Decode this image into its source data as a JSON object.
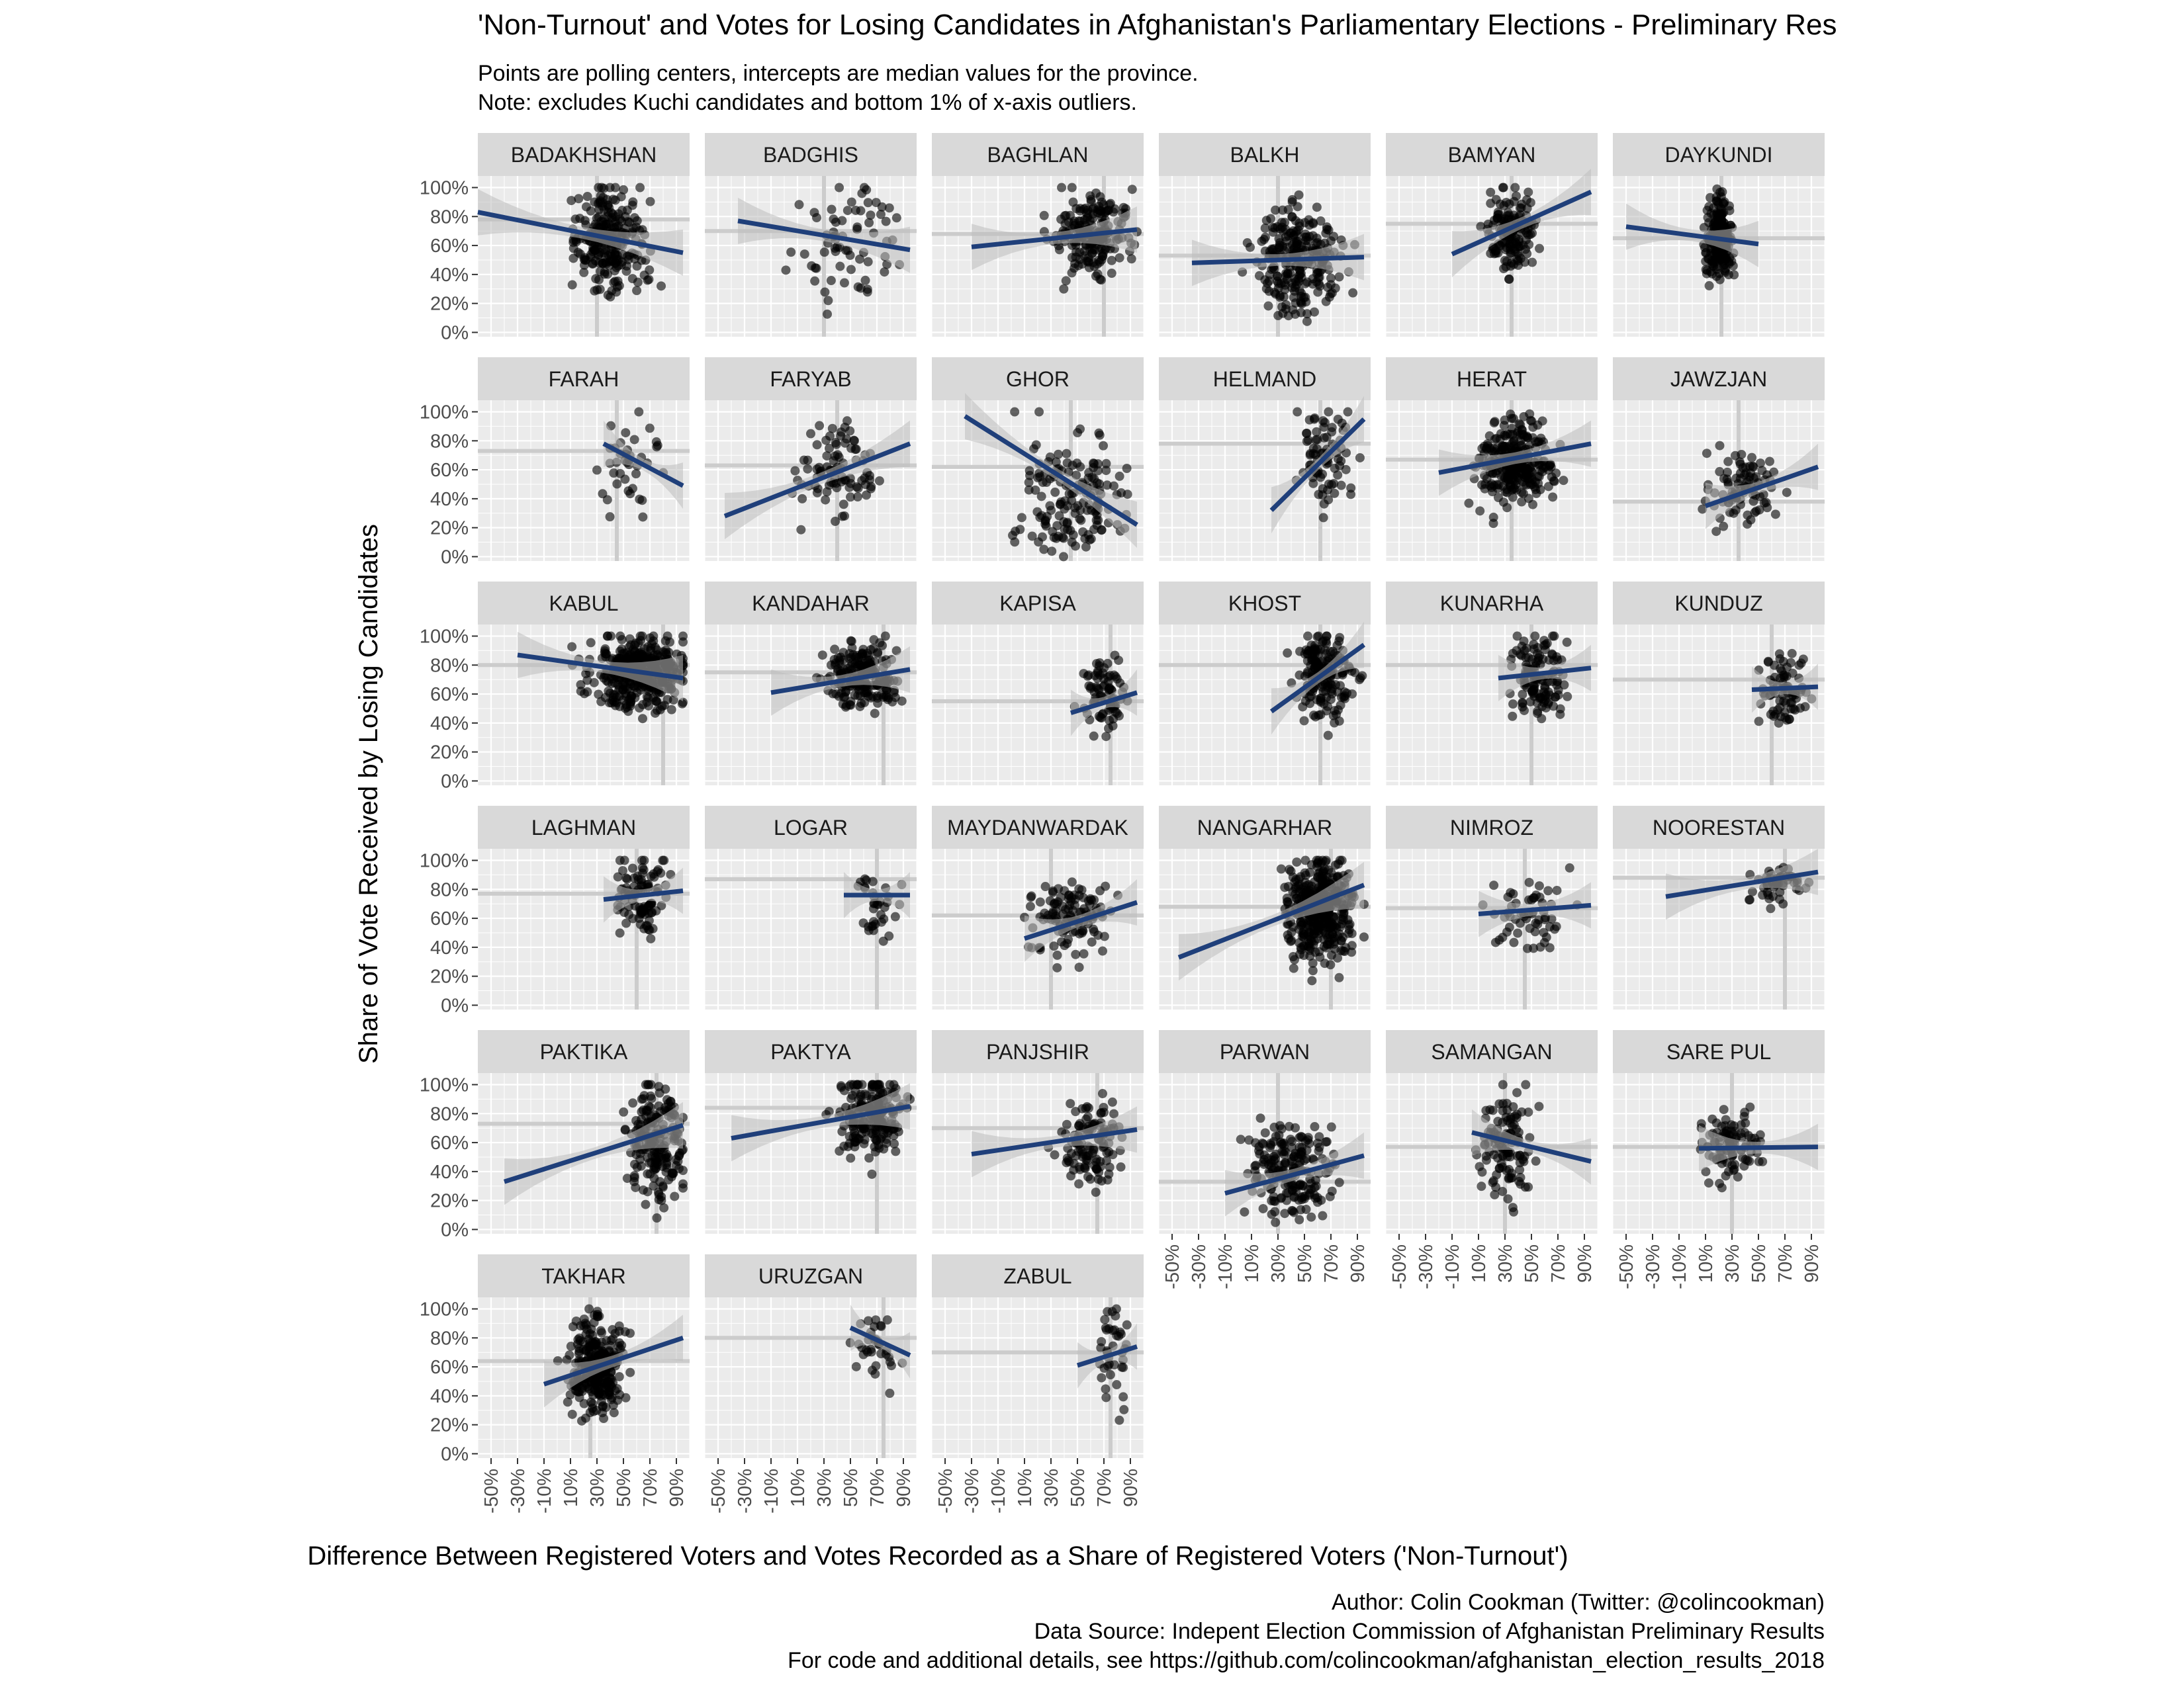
{
  "title": "'Non-Turnout' and Votes for Losing Candidates in Afghanistan's Parliamentary Elections - Preliminary Res",
  "subtitle_lines": [
    "Points are polling centers, intercepts are median values for the province.",
    "Note: excludes Kuchi candidates and bottom 1% of x-axis outliers."
  ],
  "caption_lines": [
    "Author: Colin Cookman (Twitter: @colincookman)",
    "Data Source: Indepent Election Commission of Afghanistan Preliminary Results",
    "For code and additional details, see https://github.com/colincookman/afghanistan_election_results_2018"
  ],
  "colors": {
    "panel_bg": "#ebebeb",
    "strip_bg": "#d9d9d9",
    "grid": "#ffffff",
    "point": "#000000",
    "line": "#1f3f7a",
    "band": "#bdbdbd",
    "median": "#cccccc"
  },
  "chart_data": {
    "type": "scatter",
    "facet": "province",
    "xlabel": "Difference Between Registered Voters and Votes Recorded as a Share of Registered Voters ('Non-Turnout')",
    "ylabel": "Share of Vote Received by Losing Candidates",
    "x_ticks": [
      "-50%",
      "-30%",
      "-10%",
      "10%",
      "30%",
      "50%",
      "70%",
      "90%"
    ],
    "y_ticks": [
      "0%",
      "20%",
      "40%",
      "60%",
      "80%",
      "100%"
    ],
    "xlim": [
      -0.6,
      1.0
    ],
    "ylim": [
      -0.03,
      1.08
    ],
    "grid": true,
    "units": "share",
    "panels": [
      {
        "name": "BADAKHSHAN",
        "median_x": 0.3,
        "median_y": 0.78,
        "fit": [
          [
            -0.6,
            0.83
          ],
          [
            0.95,
            0.55
          ]
        ],
        "cx": 0.4,
        "cy": 0.62,
        "sx": 0.2,
        "sy": 0.25,
        "n": 250,
        "xr": [
          -0.6,
          0.95
        ]
      },
      {
        "name": "BADGHIS",
        "median_x": 0.3,
        "median_y": 0.7,
        "fit": [
          [
            -0.35,
            0.77
          ],
          [
            0.95,
            0.57
          ]
        ],
        "cx": 0.5,
        "cy": 0.6,
        "sx": 0.25,
        "sy": 0.28,
        "n": 70,
        "xr": [
          -0.4,
          0.95
        ]
      },
      {
        "name": "BAGHLAN",
        "median_x": 0.7,
        "median_y": 0.68,
        "fit": [
          [
            -0.3,
            0.59
          ],
          [
            0.95,
            0.71
          ]
        ],
        "cx": 0.6,
        "cy": 0.68,
        "sx": 0.2,
        "sy": 0.2,
        "n": 200,
        "xr": [
          -0.5,
          0.95
        ]
      },
      {
        "name": "BALKH",
        "median_x": 0.3,
        "median_y": 0.53,
        "fit": [
          [
            -0.35,
            0.48
          ],
          [
            0.95,
            0.52
          ]
        ],
        "cx": 0.45,
        "cy": 0.5,
        "sx": 0.22,
        "sy": 0.25,
        "n": 250,
        "xr": [
          -0.5,
          0.95
        ]
      },
      {
        "name": "BAMYAN",
        "median_x": 0.35,
        "median_y": 0.75,
        "fit": [
          [
            -0.1,
            0.54
          ],
          [
            0.95,
            0.97
          ]
        ],
        "cx": 0.35,
        "cy": 0.7,
        "sx": 0.12,
        "sy": 0.2,
        "n": 150,
        "xr": [
          -0.1,
          0.95
        ]
      },
      {
        "name": "DAYKUNDI",
        "median_x": 0.22,
        "median_y": 0.65,
        "fit": [
          [
            -0.5,
            0.73
          ],
          [
            0.5,
            0.61
          ]
        ],
        "cx": 0.2,
        "cy": 0.65,
        "sx": 0.07,
        "sy": 0.2,
        "n": 200,
        "xr": [
          -0.5,
          0.5
        ]
      },
      {
        "name": "FARAH",
        "median_x": 0.45,
        "median_y": 0.73,
        "fit": [
          [
            0.35,
            0.78
          ],
          [
            0.95,
            0.49
          ]
        ],
        "cx": 0.55,
        "cy": 0.65,
        "sx": 0.15,
        "sy": 0.25,
        "n": 40,
        "xr": [
          0.3,
          0.95
        ]
      },
      {
        "name": "FARYAB",
        "median_x": 0.4,
        "median_y": 0.63,
        "fit": [
          [
            -0.45,
            0.28
          ],
          [
            0.95,
            0.78
          ]
        ],
        "cx": 0.4,
        "cy": 0.6,
        "sx": 0.2,
        "sy": 0.2,
        "n": 90,
        "xr": [
          -0.45,
          0.95
        ]
      },
      {
        "name": "GHOR",
        "median_x": 0.45,
        "median_y": 0.62,
        "fit": [
          [
            -0.35,
            0.97
          ],
          [
            0.95,
            0.22
          ]
        ],
        "cx": 0.45,
        "cy": 0.4,
        "sx": 0.3,
        "sy": 0.3,
        "n": 160,
        "xr": [
          -0.55,
          0.95
        ]
      },
      {
        "name": "HELMAND",
        "median_x": 0.62,
        "median_y": 0.78,
        "fit": [
          [
            0.25,
            0.32
          ],
          [
            0.95,
            0.95
          ]
        ],
        "cx": 0.65,
        "cy": 0.7,
        "sx": 0.15,
        "sy": 0.25,
        "n": 80,
        "xr": [
          0.25,
          0.95
        ]
      },
      {
        "name": "HERAT",
        "median_x": 0.35,
        "median_y": 0.67,
        "fit": [
          [
            -0.2,
            0.58
          ],
          [
            0.95,
            0.78
          ]
        ],
        "cx": 0.4,
        "cy": 0.65,
        "sx": 0.2,
        "sy": 0.2,
        "n": 300,
        "xr": [
          -0.3,
          0.95
        ]
      },
      {
        "name": "JAWZJAN",
        "median_x": 0.35,
        "median_y": 0.38,
        "fit": [
          [
            0.1,
            0.35
          ],
          [
            0.95,
            0.62
          ]
        ],
        "cx": 0.4,
        "cy": 0.45,
        "sx": 0.18,
        "sy": 0.18,
        "n": 90,
        "xr": [
          0.05,
          0.95
        ]
      },
      {
        "name": "KABUL",
        "median_x": 0.8,
        "median_y": 0.8,
        "fit": [
          [
            -0.3,
            0.87
          ],
          [
            0.95,
            0.71
          ]
        ],
        "cx": 0.6,
        "cy": 0.75,
        "sx": 0.25,
        "sy": 0.18,
        "n": 400,
        "xr": [
          -0.3,
          0.95
        ]
      },
      {
        "name": "KANDAHAR",
        "median_x": 0.75,
        "median_y": 0.75,
        "fit": [
          [
            -0.1,
            0.61
          ],
          [
            0.95,
            0.77
          ]
        ],
        "cx": 0.6,
        "cy": 0.72,
        "sx": 0.2,
        "sy": 0.15,
        "n": 200,
        "xr": [
          -0.15,
          0.95
        ]
      },
      {
        "name": "KAPISA",
        "median_x": 0.75,
        "median_y": 0.55,
        "fit": [
          [
            0.45,
            0.47
          ],
          [
            0.95,
            0.61
          ]
        ],
        "cx": 0.7,
        "cy": 0.6,
        "sx": 0.12,
        "sy": 0.2,
        "n": 80,
        "xr": [
          0.45,
          0.95
        ]
      },
      {
        "name": "KHOST",
        "median_x": 0.62,
        "median_y": 0.8,
        "fit": [
          [
            0.25,
            0.48
          ],
          [
            0.95,
            0.94
          ]
        ],
        "cx": 0.65,
        "cy": 0.75,
        "sx": 0.15,
        "sy": 0.22,
        "n": 180,
        "xr": [
          0.25,
          0.95
        ]
      },
      {
        "name": "KUNARHA",
        "median_x": 0.5,
        "median_y": 0.8,
        "fit": [
          [
            0.25,
            0.71
          ],
          [
            0.95,
            0.78
          ]
        ],
        "cx": 0.55,
        "cy": 0.72,
        "sx": 0.15,
        "sy": 0.2,
        "n": 130,
        "xr": [
          0.25,
          0.95
        ]
      },
      {
        "name": "KUNDUZ",
        "median_x": 0.6,
        "median_y": 0.7,
        "fit": [
          [
            0.45,
            0.63
          ],
          [
            0.95,
            0.65
          ]
        ],
        "cx": 0.7,
        "cy": 0.62,
        "sx": 0.12,
        "sy": 0.18,
        "n": 80,
        "xr": [
          0.35,
          0.95
        ]
      },
      {
        "name": "LAGHMAN",
        "median_x": 0.6,
        "median_y": 0.77,
        "fit": [
          [
            0.35,
            0.73
          ],
          [
            0.95,
            0.79
          ]
        ],
        "cx": 0.65,
        "cy": 0.75,
        "sx": 0.14,
        "sy": 0.18,
        "n": 100,
        "xr": [
          0.35,
          0.95
        ]
      },
      {
        "name": "LOGAR",
        "median_x": 0.7,
        "median_y": 0.87,
        "fit": [
          [
            0.45,
            0.76
          ],
          [
            0.95,
            0.76
          ]
        ],
        "cx": 0.7,
        "cy": 0.7,
        "sx": 0.13,
        "sy": 0.2,
        "n": 35,
        "xr": [
          0.35,
          0.95
        ]
      },
      {
        "name": "MAYDANWARDAK",
        "median_x": 0.3,
        "median_y": 0.62,
        "fit": [
          [
            0.1,
            0.46
          ],
          [
            0.95,
            0.71
          ]
        ],
        "cx": 0.45,
        "cy": 0.58,
        "sx": 0.2,
        "sy": 0.18,
        "n": 120,
        "xr": [
          0.1,
          0.95
        ]
      },
      {
        "name": "NANGARHAR",
        "median_x": 0.7,
        "median_y": 0.68,
        "fit": [
          [
            -0.45,
            0.33
          ],
          [
            0.95,
            0.83
          ]
        ],
        "cx": 0.62,
        "cy": 0.65,
        "sx": 0.18,
        "sy": 0.25,
        "n": 400,
        "xr": [
          -0.45,
          0.95
        ]
      },
      {
        "name": "NIMROZ",
        "median_x": 0.45,
        "median_y": 0.67,
        "fit": [
          [
            0.1,
            0.63
          ],
          [
            0.95,
            0.69
          ]
        ],
        "cx": 0.5,
        "cy": 0.62,
        "sx": 0.2,
        "sy": 0.18,
        "n": 60,
        "xr": [
          0.1,
          0.95
        ]
      },
      {
        "name": "NOORESTAN",
        "median_x": 0.7,
        "median_y": 0.88,
        "fit": [
          [
            -0.2,
            0.75
          ],
          [
            0.95,
            0.92
          ]
        ],
        "cx": 0.65,
        "cy": 0.85,
        "sx": 0.15,
        "sy": 0.1,
        "n": 50,
        "xr": [
          -0.45,
          0.95
        ]
      },
      {
        "name": "PAKTIKA",
        "median_x": 0.75,
        "median_y": 0.73,
        "fit": [
          [
            -0.4,
            0.33
          ],
          [
            0.95,
            0.72
          ]
        ],
        "cx": 0.75,
        "cy": 0.6,
        "sx": 0.15,
        "sy": 0.3,
        "n": 200,
        "xr": [
          -0.45,
          0.95
        ]
      },
      {
        "name": "PAKTYA",
        "median_x": 0.7,
        "median_y": 0.84,
        "fit": [
          [
            -0.4,
            0.63
          ],
          [
            0.95,
            0.85
          ]
        ],
        "cx": 0.65,
        "cy": 0.78,
        "sx": 0.18,
        "sy": 0.2,
        "n": 200,
        "xr": [
          -0.45,
          0.95
        ]
      },
      {
        "name": "PANJSHIR",
        "median_x": 0.65,
        "median_y": 0.7,
        "fit": [
          [
            -0.3,
            0.52
          ],
          [
            0.95,
            0.69
          ]
        ],
        "cx": 0.6,
        "cy": 0.6,
        "sx": 0.15,
        "sy": 0.2,
        "n": 120,
        "xr": [
          -0.3,
          0.95
        ]
      },
      {
        "name": "PARWAN",
        "median_x": 0.3,
        "median_y": 0.33,
        "fit": [
          [
            -0.1,
            0.25
          ],
          [
            0.95,
            0.51
          ]
        ],
        "cx": 0.4,
        "cy": 0.4,
        "sx": 0.22,
        "sy": 0.22,
        "n": 200,
        "xr": [
          -0.2,
          0.95
        ]
      },
      {
        "name": "SAMANGAN",
        "median_x": 0.3,
        "median_y": 0.57,
        "fit": [
          [
            0.05,
            0.67
          ],
          [
            0.95,
            0.47
          ]
        ],
        "cx": 0.3,
        "cy": 0.6,
        "sx": 0.15,
        "sy": 0.28,
        "n": 120,
        "xr": [
          0.05,
          0.95
        ]
      },
      {
        "name": "SARE PUL",
        "median_x": 0.3,
        "median_y": 0.57,
        "fit": [
          [
            0.05,
            0.56
          ],
          [
            0.95,
            0.57
          ]
        ],
        "cx": 0.3,
        "cy": 0.58,
        "sx": 0.15,
        "sy": 0.15,
        "n": 100,
        "xr": [
          -0.05,
          0.95
        ]
      },
      {
        "name": "TAKHAR",
        "median_x": 0.25,
        "median_y": 0.64,
        "fit": [
          [
            -0.1,
            0.48
          ],
          [
            0.95,
            0.8
          ]
        ],
        "cx": 0.3,
        "cy": 0.6,
        "sx": 0.15,
        "sy": 0.22,
        "n": 300,
        "xr": [
          -0.15,
          0.95
        ]
      },
      {
        "name": "URUZGAN",
        "median_x": 0.75,
        "median_y": 0.8,
        "fit": [
          [
            0.5,
            0.87
          ],
          [
            0.95,
            0.68
          ]
        ],
        "cx": 0.72,
        "cy": 0.72,
        "sx": 0.12,
        "sy": 0.2,
        "n": 35,
        "xr": [
          0.45,
          0.95
        ]
      },
      {
        "name": "ZABUL",
        "median_x": 0.75,
        "median_y": 0.7,
        "fit": [
          [
            0.5,
            0.61
          ],
          [
            0.95,
            0.74
          ]
        ],
        "cx": 0.75,
        "cy": 0.7,
        "sx": 0.1,
        "sy": 0.25,
        "n": 40,
        "xr": [
          0.25,
          0.95
        ]
      }
    ]
  }
}
